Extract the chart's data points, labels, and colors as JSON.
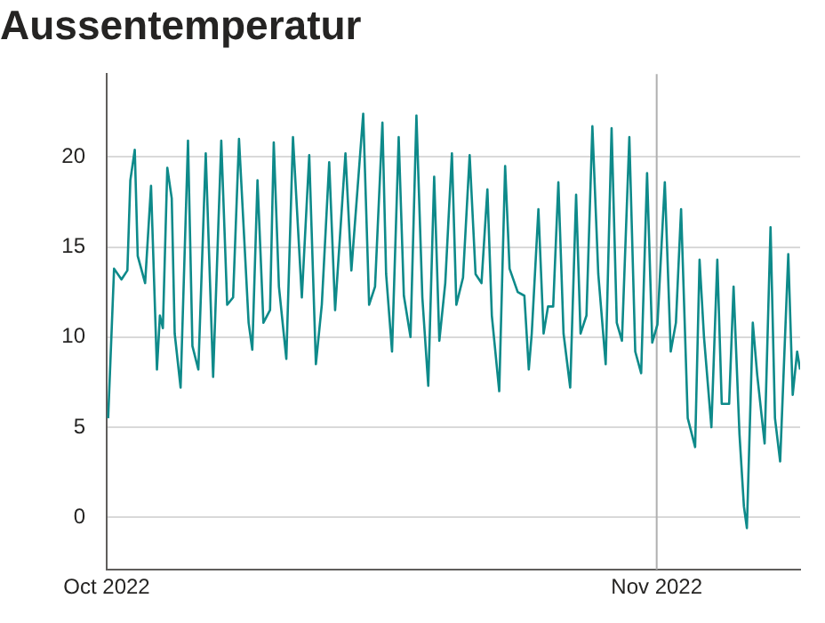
{
  "chart_data": {
    "type": "line",
    "title": "Aussentemperatur",
    "x": [
      "2022-10-01T02:00",
      "2022-10-01T10:00",
      "2022-10-01T20:00",
      "2022-10-02T04:00",
      "2022-10-02T08:00",
      "2022-10-02T14:00",
      "2022-10-02T18:00",
      "2022-10-03T04:00",
      "2022-10-03T12:00",
      "2022-10-03T20:00",
      "2022-10-04T00:00",
      "2022-10-04T04:00",
      "2022-10-04T10:00",
      "2022-10-04T16:00",
      "2022-10-04T20:00",
      "2022-10-05T04:00",
      "2022-10-05T14:00",
      "2022-10-05T20:00",
      "2022-10-06T04:00",
      "2022-10-06T14:00",
      "2022-10-07T00:00",
      "2022-10-07T11:00",
      "2022-10-07T19:00",
      "2022-10-08T03:00",
      "2022-10-08T11:00",
      "2022-10-09T00:00",
      "2022-10-09T05:00",
      "2022-10-09T12:00",
      "2022-10-09T20:00",
      "2022-10-10T05:00",
      "2022-10-10T10:00",
      "2022-10-10T17:00",
      "2022-10-11T03:00",
      "2022-10-11T12:00",
      "2022-10-12T00:00",
      "2022-10-12T10:00",
      "2022-10-12T19:00",
      "2022-10-13T03:00",
      "2022-10-13T13:00",
      "2022-10-13T21:00",
      "2022-10-14T11:00",
      "2022-10-14T19:00",
      "2022-10-15T11:00",
      "2022-10-15T19:00",
      "2022-10-16T03:00",
      "2022-10-16T13:00",
      "2022-10-16T18:00",
      "2022-10-17T02:00",
      "2022-10-17T11:00",
      "2022-10-17T18:00",
      "2022-10-18T03:00",
      "2022-10-18T11:00",
      "2022-10-18T19:00",
      "2022-10-19T03:00",
      "2022-10-19T11:00",
      "2022-10-19T18:00",
      "2022-10-20T02:00",
      "2022-10-20T11:00",
      "2022-10-20T17:00",
      "2022-10-21T02:00",
      "2022-10-21T11:00",
      "2022-10-21T19:00",
      "2022-10-22T03:00",
      "2022-10-22T11:00",
      "2022-10-22T17:00",
      "2022-10-23T03:00",
      "2022-10-23T11:00",
      "2022-10-23T17:00",
      "2022-10-24T04:00",
      "2022-10-24T13:00",
      "2022-10-24T19:00",
      "2022-10-24T23:00",
      "2022-10-25T08:00",
      "2022-10-25T15:00",
      "2022-10-25T21:00",
      "2022-10-26T04:00",
      "2022-10-26T11:00",
      "2022-10-26T18:00",
      "2022-10-27T03:00",
      "2022-10-27T11:00",
      "2022-10-27T17:00",
      "2022-10-28T01:00",
      "2022-10-28T09:00",
      "2022-10-28T17:00",
      "2022-10-29T03:00",
      "2022-10-29T11:00",
      "2022-10-29T18:00",
      "2022-10-30T01:00",
      "2022-10-30T11:00",
      "2022-10-30T19:00",
      "2022-10-31T03:00",
      "2022-10-31T11:00",
      "2022-10-31T18:00",
      "2022-11-01T01:00",
      "2022-11-01T11:00",
      "2022-11-01T19:00",
      "2022-11-02T02:00",
      "2022-11-02T09:00",
      "2022-11-02T18:00",
      "2022-11-03T04:00",
      "2022-11-03T10:00",
      "2022-11-03T16:00",
      "2022-11-04T02:00",
      "2022-11-04T10:00",
      "2022-11-04T16:00",
      "2022-11-05T02:00",
      "2022-11-05T08:00",
      "2022-11-05T16:00",
      "2022-11-05T22:00",
      "2022-11-06T02:00",
      "2022-11-06T10:00",
      "2022-11-06T16:00",
      "2022-11-07T02:00",
      "2022-11-07T10:00",
      "2022-11-07T16:00",
      "2022-11-07T23:00",
      "2022-11-08T10:00",
      "2022-11-08T16:00",
      "2022-11-08T22:00",
      "2022-11-09T02:00"
    ],
    "series": [
      {
        "color": "#0e8a8a",
        "values": [
          5.5,
          13.8,
          13.2,
          13.7,
          18.7,
          20.4,
          14.5,
          13.0,
          18.4,
          8.2,
          11.2,
          10.5,
          19.4,
          17.7,
          10.2,
          7.2,
          20.9,
          9.5,
          8.2,
          20.2,
          7.8,
          20.9,
          11.8,
          12.2,
          21.0,
          10.8,
          9.3,
          18.7,
          10.8,
          11.5,
          20.8,
          12.8,
          8.8,
          21.1,
          12.2,
          20.1,
          8.5,
          11.8,
          19.7,
          11.5,
          20.2,
          13.7,
          22.4,
          11.8,
          12.8,
          21.9,
          13.5,
          9.2,
          21.1,
          12.3,
          10.0,
          22.3,
          12.2,
          7.3,
          18.9,
          9.8,
          13.0,
          20.2,
          11.8,
          13.3,
          20.1,
          13.5,
          13.0,
          18.2,
          11.2,
          7.0,
          19.5,
          13.8,
          12.5,
          12.3,
          8.2,
          10.2,
          17.1,
          10.2,
          11.7,
          11.7,
          18.6,
          10.2,
          7.2,
          17.9,
          10.2,
          11.2,
          21.7,
          13.5,
          8.5,
          21.6,
          10.8,
          9.8,
          21.1,
          9.2,
          8.0,
          19.1,
          9.7,
          10.7,
          18.6,
          9.2,
          10.8,
          17.1,
          5.5,
          3.9,
          14.3,
          10.0,
          5.0,
          14.3,
          6.3,
          6.3,
          12.8,
          4.6,
          0.6,
          -0.6,
          10.8,
          7.9,
          4.1,
          16.1,
          5.5,
          3.1,
          14.6,
          6.8,
          9.2,
          8.2
        ]
      }
    ],
    "xlim": [
      "2022-10-01",
      "2022-11-09T02:00"
    ],
    "xticks": [
      {
        "value": "2022-10-01",
        "label": "Oct 2022"
      },
      {
        "value": "2022-11-01",
        "label": "Nov 2022"
      }
    ],
    "ylim": [
      -2.9,
      24.6
    ],
    "yticks": [
      0,
      5,
      10,
      15,
      20
    ],
    "ref_lines": [
      {
        "axis": "x",
        "value": "2022-11-01",
        "color": "#b0b0b0"
      }
    ],
    "grid": "y",
    "legend": false,
    "marker": "none",
    "line_style": "solid"
  }
}
